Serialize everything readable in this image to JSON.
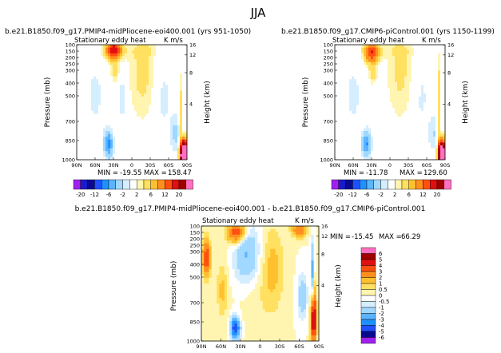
{
  "page_title": "JJA",
  "colors": {
    "bg": "#ffffff",
    "ink": "#000000"
  },
  "chart_data": [
    {
      "type": "heatmap",
      "id": "plot1",
      "run_title": "b.e21.B1850.f09_g17.PMIP4-midPliocene-eoi400.001 (yrs 951-1050)",
      "left_label": "Stationary eddy heat",
      "units": "K m/s",
      "ylabel": "Pressure (mb)",
      "ylabel_right": "Height (km)",
      "x_tick_labels": [
        "90N",
        "60N",
        "30N",
        "0",
        "30S",
        "60S",
        "90S"
      ],
      "x_tick_values": [
        90,
        60,
        30,
        0,
        -30,
        -60,
        -90
      ],
      "xlim": [
        90,
        -90
      ],
      "y_tick_labels": [
        "100",
        "150",
        "200",
        "250",
        "300",
        "400",
        "500",
        "700",
        "850",
        "1000"
      ],
      "y_tick_values": [
        100,
        150,
        200,
        250,
        300,
        400,
        500,
        700,
        850,
        1000
      ],
      "ylim": [
        100,
        1000
      ],
      "height_tick_labels": [
        "16",
        "12",
        "8",
        "4"
      ],
      "height_tick_values": [
        16,
        12,
        8,
        4
      ],
      "min_label": "MIN =",
      "min_value": "-19.55",
      "max_label": "MAX =",
      "max_value": "158.47",
      "field": [
        {
          "lat": 30,
          "p": 140,
          "sx": 9,
          "sp": 50,
          "amp": 14
        },
        {
          "lat": 28,
          "p": 300,
          "sx": 5,
          "sp": 60,
          "amp": 3
        },
        {
          "lat": -85,
          "p": 960,
          "sx": 4,
          "sp": 70,
          "amp": 40
        },
        {
          "lat": -80,
          "p": 650,
          "sx": 2,
          "sp": 220,
          "amp": 3
        },
        {
          "lat": -18,
          "p": 320,
          "sx": 16,
          "sp": 260,
          "amp": 2.6
        },
        {
          "lat": 60,
          "p": 500,
          "sx": 14,
          "sp": 250,
          "amp": -1.2
        },
        {
          "lat": -50,
          "p": 500,
          "sx": 12,
          "sp": 250,
          "amp": -1.4
        },
        {
          "lat": 38,
          "p": 880,
          "sx": 5,
          "sp": 70,
          "amp": -7
        },
        {
          "lat": 15,
          "p": 520,
          "sx": 4,
          "sp": 130,
          "amp": -2
        },
        {
          "lat": -72,
          "p": 800,
          "sx": 6,
          "sp": 100,
          "amp": -2.5
        },
        {
          "lat": 0,
          "p": 150,
          "sx": 40,
          "sp": 40,
          "amp": 0.8
        }
      ]
    },
    {
      "type": "heatmap",
      "id": "plot2",
      "run_title": "b.e21.B1850.f09_g17.CMIP6-piControl.001 (yrs 1150-1199)",
      "left_label": "Stationary eddy heat",
      "units": "K m/s",
      "ylabel": "Pressure (mb)",
      "ylabel_right": "Height (km)",
      "x_tick_labels": [
        "90N",
        "60N",
        "30N",
        "0",
        "30S",
        "60S",
        "90S"
      ],
      "x_tick_values": [
        90,
        60,
        30,
        0,
        -30,
        -60,
        -90
      ],
      "xlim": [
        90,
        -90
      ],
      "y_tick_labels": [
        "100",
        "150",
        "200",
        "250",
        "300",
        "400",
        "500",
        "700",
        "850",
        "1000"
      ],
      "y_tick_values": [
        100,
        150,
        200,
        250,
        300,
        400,
        500,
        700,
        850,
        1000
      ],
      "ylim": [
        100,
        1000
      ],
      "height_tick_labels": [
        "16",
        "12",
        "8",
        "4"
      ],
      "height_tick_values": [
        16,
        12,
        8,
        4
      ],
      "min_label": "MIN =",
      "min_value": "-11.78",
      "max_label": "MAX =",
      "max_value": "129.60",
      "field": [
        {
          "lat": 30,
          "p": 160,
          "sx": 8,
          "sp": 55,
          "amp": 12
        },
        {
          "lat": 28,
          "p": 320,
          "sx": 5,
          "sp": 60,
          "amp": 3
        },
        {
          "lat": -85,
          "p": 960,
          "sx": 4,
          "sp": 70,
          "amp": 35
        },
        {
          "lat": -80,
          "p": 600,
          "sx": 2,
          "sp": 250,
          "amp": 4
        },
        {
          "lat": -18,
          "p": 320,
          "sx": 16,
          "sp": 260,
          "amp": 2.4
        },
        {
          "lat": 60,
          "p": 500,
          "sx": 14,
          "sp": 250,
          "amp": -1.2
        },
        {
          "lat": -50,
          "p": 500,
          "sx": 12,
          "sp": 250,
          "amp": -1.3
        },
        {
          "lat": 38,
          "p": 880,
          "sx": 5,
          "sp": 70,
          "amp": -6
        },
        {
          "lat": -72,
          "p": 800,
          "sx": 6,
          "sp": 100,
          "amp": -2
        },
        {
          "lat": 0,
          "p": 150,
          "sx": 40,
          "sp": 40,
          "amp": 0.8
        }
      ]
    },
    {
      "type": "heatmap",
      "id": "plot3",
      "run_title": "b.e21.B1850.f09_g17.PMIP4-midPliocene-eoi400.001 - b.e21.B1850.f09_g17.CMIP6-piControl.001",
      "left_label": "Stationary eddy heat",
      "units": "K m/s",
      "ylabel": "Pressure (mb)",
      "ylabel_right": "Height (km)",
      "x_tick_labels": [
        "90N",
        "60N",
        "30N",
        "0",
        "30S",
        "60S",
        "90S"
      ],
      "x_tick_values": [
        90,
        60,
        30,
        0,
        -30,
        -60,
        -90
      ],
      "xlim": [
        90,
        -90
      ],
      "y_tick_labels": [
        "100",
        "150",
        "200",
        "250",
        "300",
        "400",
        "500",
        "700",
        "850",
        "1000"
      ],
      "y_tick_values": [
        100,
        150,
        200,
        250,
        300,
        400,
        500,
        700,
        850,
        1000
      ],
      "ylim": [
        100,
        1000
      ],
      "height_tick_labels": [
        "16",
        "12",
        "8",
        "4"
      ],
      "height_tick_values": [
        16,
        12,
        8,
        4
      ],
      "min_label": "MIN =",
      "min_value": "-15.45",
      "max_label": "MAX =",
      "max_value": "66.29",
      "field": [
        {
          "lat": 36,
          "p": 150,
          "sx": 10,
          "sp": 60,
          "amp": 4
        },
        {
          "lat": -60,
          "p": 130,
          "sx": 8,
          "sp": 40,
          "amp": 3
        },
        {
          "lat": 82,
          "p": 350,
          "sx": 4,
          "sp": 100,
          "amp": 4
        },
        {
          "lat": 20,
          "p": 320,
          "sx": 14,
          "sp": 160,
          "amp": -2.2
        },
        {
          "lat": -20,
          "p": 420,
          "sx": 12,
          "sp": 220,
          "amp": 1.1
        },
        {
          "lat": -82,
          "p": 820,
          "sx": 3,
          "sp": 150,
          "amp": 6
        },
        {
          "lat": -80,
          "p": 500,
          "sx": 2,
          "sp": 200,
          "amp": -2.5
        },
        {
          "lat": 38,
          "p": 900,
          "sx": 5,
          "sp": 60,
          "amp": -5
        },
        {
          "lat": -65,
          "p": 650,
          "sx": 5,
          "sp": 120,
          "amp": -1.8
        },
        {
          "lat": 58,
          "p": 600,
          "sx": 6,
          "sp": 150,
          "amp": 1.2
        },
        {
          "lat": 0,
          "p": 600,
          "sx": 20,
          "sp": 300,
          "amp": 0.4
        }
      ]
    }
  ],
  "colorbar_top": {
    "labels": [
      "-20",
      "-12",
      "-6",
      "-2",
      "2",
      "6",
      "12",
      "20"
    ],
    "colors": [
      "#a020f0",
      "#1a1ac8",
      "#0a0a90",
      "#2050ff",
      "#1e90ff",
      "#5ab4ff",
      "#a0d8ff",
      "#d4eeff",
      "#ffffff",
      "#fff5b0",
      "#ffe060",
      "#ffc030",
      "#ff9020",
      "#ff5010",
      "#e01010",
      "#a00000",
      "#ff70c0"
    ]
  },
  "colorbar_diff": {
    "labels": [
      "6",
      "5",
      "4",
      "3",
      "2",
      "1",
      "0.5",
      "0",
      "-0.5",
      "-1",
      "-2",
      "-3",
      "-4",
      "-5",
      "-6"
    ],
    "colors": [
      "#ff70c0",
      "#a00000",
      "#e01010",
      "#ff5010",
      "#ff9020",
      "#ffc030",
      "#ffe060",
      "#fff5b0",
      "#ffffff",
      "#d4eeff",
      "#a0d8ff",
      "#5ab4ff",
      "#1e90ff",
      "#2050ff",
      "#0a0a90",
      "#a020f0"
    ]
  }
}
